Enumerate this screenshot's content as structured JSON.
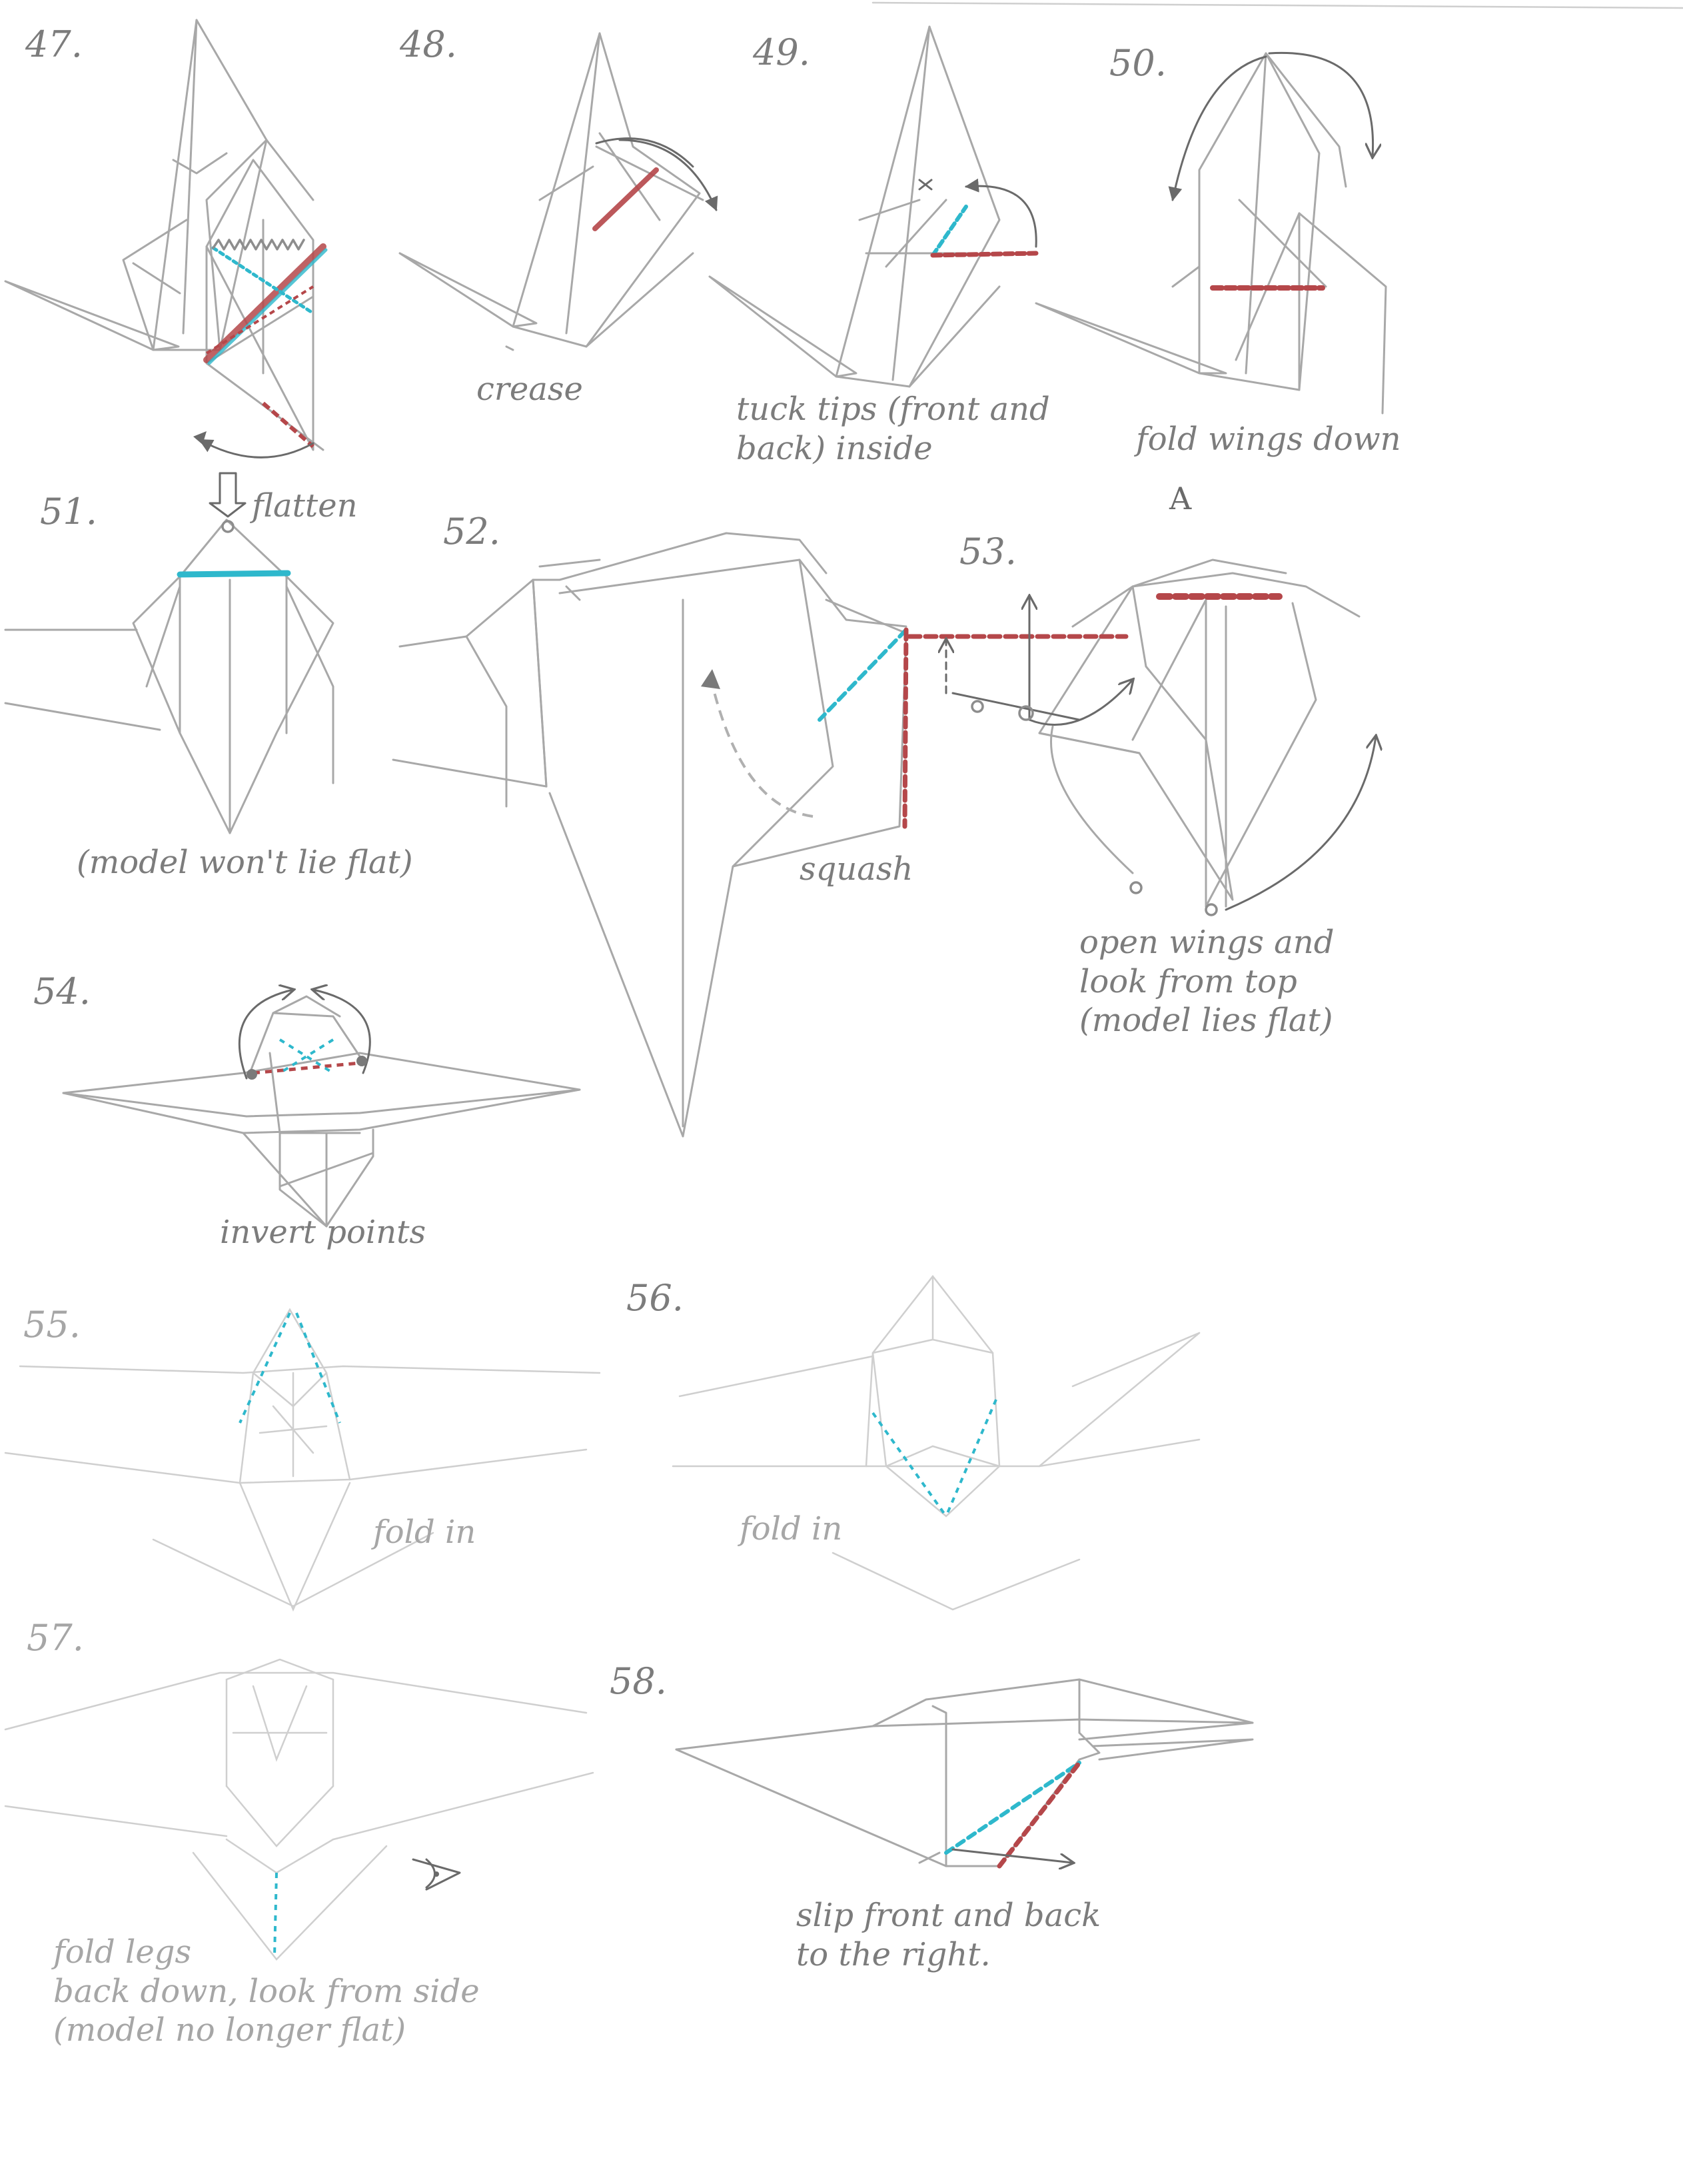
{
  "steps": [
    {
      "number": "47.",
      "caption": ""
    },
    {
      "number": "48.",
      "caption": "crease"
    },
    {
      "number": "49.",
      "caption": "tuck tips (front and\nback) inside"
    },
    {
      "number": "50.",
      "caption": "fold wings down"
    },
    {
      "number": "51.",
      "caption": "(model won't lie flat)",
      "note": "flatten"
    },
    {
      "number": "52.",
      "caption": "squash"
    },
    {
      "number": "53.",
      "caption": "open wings and\nlook from top\n(model lies flat)",
      "marker": "A"
    },
    {
      "number": "54.",
      "caption": "invert points"
    },
    {
      "number": "55.",
      "caption": "fold in"
    },
    {
      "number": "56.",
      "caption": "fold in"
    },
    {
      "number": "57.",
      "caption": "fold legs\nback down, look from side\n(model no longer flat)"
    },
    {
      "number": "58.",
      "caption": "slip front and back\nto the right."
    }
  ],
  "colors": {
    "pencil": "#a8a8a8",
    "mountain_fold": "#b5474a",
    "valley_fold": "#2eb8cc",
    "ink": "#7c7c7c"
  },
  "icons": [
    "eye-icon",
    "flatten-arrow-icon",
    "fold-arrow-icon"
  ]
}
